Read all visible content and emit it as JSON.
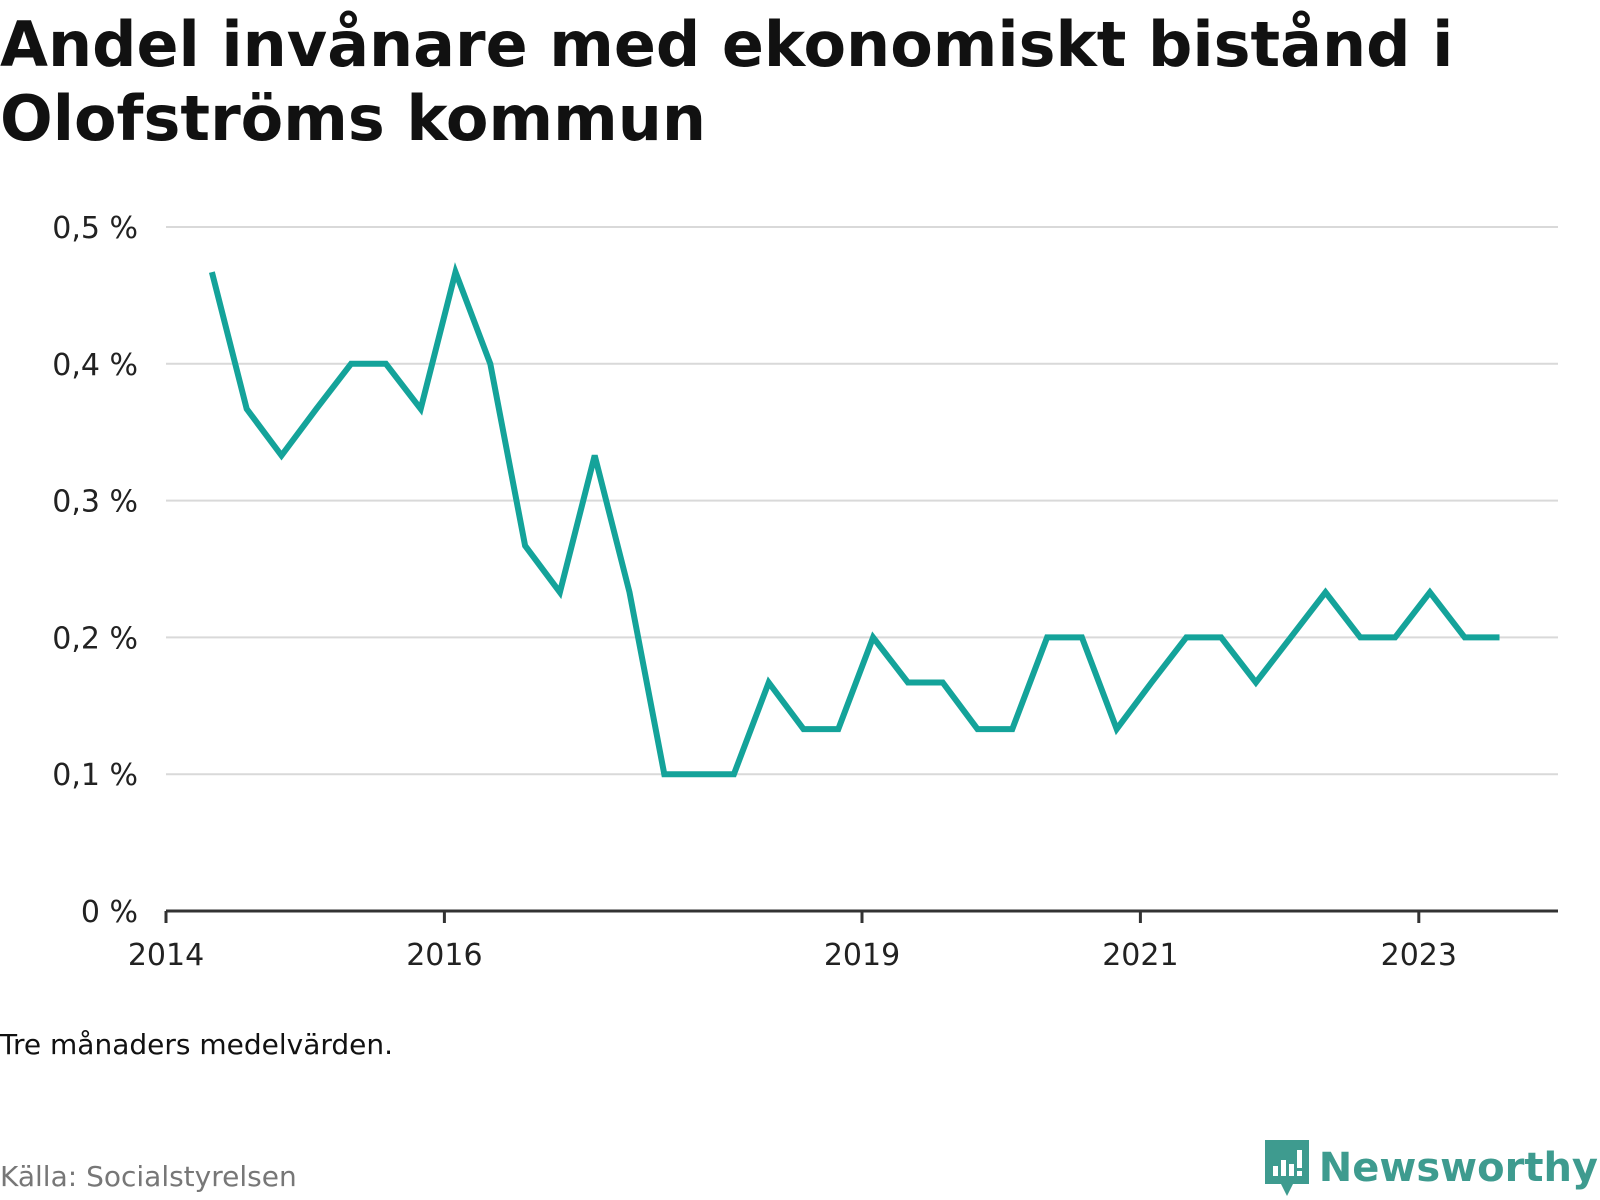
{
  "title": "Andel invånare med ekonomiskt bistånd i Olofströms kommun",
  "note": "Tre månaders medelvärden.",
  "source": "Källa: Socialstyrelsen",
  "brand": {
    "name": "Newsworthy",
    "icon": "newsworthy-logo-icon"
  },
  "colors": {
    "line": "#14a39a",
    "grid": "#d9d9d9",
    "axis": "#333333",
    "brand": "#3e9b8f"
  },
  "chart_data": {
    "type": "line",
    "title": "Andel invånare med ekonomiskt bistånd i Olofströms kommun",
    "xlabel": "",
    "ylabel": "",
    "x_ticks": [
      {
        "label": "2014",
        "value": 2014.0
      },
      {
        "label": "2016",
        "value": 2016.0
      },
      {
        "label": "2019",
        "value": 2019.0
      },
      {
        "label": "2021",
        "value": 2021.0
      },
      {
        "label": "2023",
        "value": 2023.0
      }
    ],
    "y_ticks": [
      {
        "label": "0 %",
        "value": 0
      },
      {
        "label": "0,1 %",
        "value": 0.1
      },
      {
        "label": "0,2 %",
        "value": 0.2
      },
      {
        "label": "0,3 %",
        "value": 0.3
      },
      {
        "label": "0,4 %",
        "value": 0.4
      },
      {
        "label": "0,5 %",
        "value": 0.5
      }
    ],
    "xlim": [
      2014.0,
      2024.0
    ],
    "ylim": [
      0,
      0.5
    ],
    "grid": true,
    "series": [
      {
        "x": [
          2014.33,
          2014.58,
          2014.83,
          2015.08,
          2015.33,
          2015.58,
          2015.83,
          2016.08,
          2016.33,
          2016.58,
          2016.83,
          2017.08,
          2017.33,
          2017.58,
          2017.83,
          2018.08,
          2018.33,
          2018.58,
          2018.83,
          2019.08,
          2019.33,
          2019.58,
          2019.83,
          2020.08,
          2020.33,
          2020.58,
          2020.83,
          2021.08,
          2021.33,
          2021.58,
          2021.83,
          2022.08,
          2022.33,
          2022.58,
          2022.83,
          2023.08,
          2023.33,
          2023.58
        ],
        "values": [
          0.467,
          0.367,
          0.333,
          0.367,
          0.4,
          0.4,
          0.367,
          0.467,
          0.4,
          0.267,
          0.233,
          0.333,
          0.233,
          0.1,
          0.1,
          0.1,
          0.167,
          0.133,
          0.133,
          0.2,
          0.167,
          0.167,
          0.133,
          0.133,
          0.2,
          0.2,
          0.133,
          0.167,
          0.2,
          0.2,
          0.167,
          0.2,
          0.233,
          0.2,
          0.2,
          0.233,
          0.2,
          0.2
        ]
      }
    ]
  }
}
